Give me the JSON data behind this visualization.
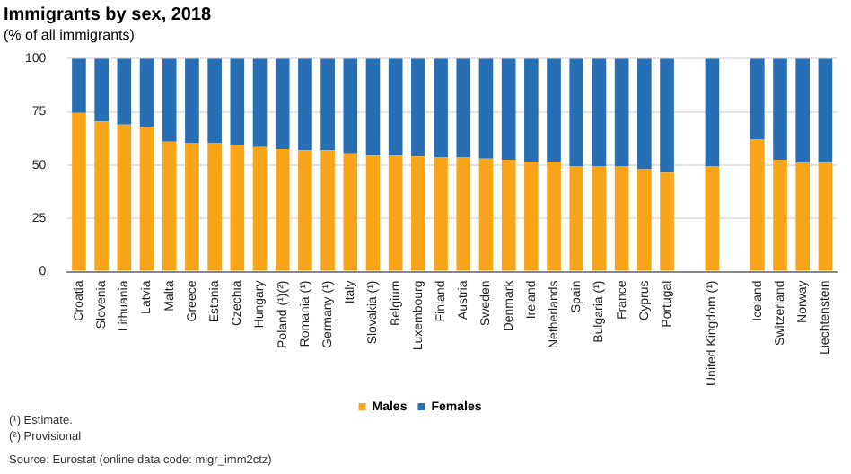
{
  "chart_data": {
    "type": "bar",
    "title": "Immigrants by sex, 2018",
    "subtitle": "(% of all immigrants)",
    "categories": [
      "Croatia",
      "Slovenia",
      "Lithuania",
      "Latvia",
      "Malta",
      "Greece",
      "Estonia",
      "Czechia",
      "Hungary",
      "Poland (¹)(²)",
      "Romania (¹)",
      "Germany (¹)",
      "Italy",
      "Slovakia (¹)",
      "Belgium",
      "Luxembourg",
      "Finland",
      "Austria",
      "Sweden",
      "Denmark",
      "Ireland",
      "Netherlands",
      "Spain",
      "Bulgaria (¹)",
      "France",
      "Cyprus",
      "Portugal",
      null,
      "United Kingdom (¹)",
      null,
      "Iceland",
      "Switzerland",
      "Norway",
      "Liechtenstein"
    ],
    "series": [
      {
        "name": "Males",
        "color": "#faa519",
        "values": [
          74.5,
          70.5,
          69,
          68,
          61,
          60.5,
          60.5,
          59.5,
          58.5,
          57.5,
          57,
          57,
          55.5,
          54.5,
          54.5,
          54,
          53.5,
          53.5,
          53,
          52.5,
          51.5,
          51.5,
          49.5,
          49.5,
          49.5,
          48,
          46.5,
          null,
          49.5,
          null,
          62,
          52.5,
          51,
          51
        ]
      },
      {
        "name": "Females",
        "color": "#286eb4",
        "values": [
          25.5,
          29.5,
          31,
          32,
          39,
          39.5,
          39.5,
          40.5,
          41.5,
          42.5,
          43,
          43,
          44.5,
          45.5,
          45.5,
          46,
          46.5,
          46.5,
          47,
          47.5,
          48.5,
          48.5,
          50.5,
          50.5,
          50.5,
          52,
          53.5,
          null,
          50.5,
          null,
          38,
          47.5,
          49,
          49
        ]
      }
    ],
    "stacked": true,
    "ylim": [
      0,
      100
    ],
    "yticks": [
      0,
      25,
      50,
      75,
      100
    ],
    "grid": "y",
    "legend": "bottom",
    "annotations": [
      "(¹) Estimate.",
      "(²) Provisional",
      "Source: Eurostat (online data code: migr_imm2ctz)"
    ]
  }
}
